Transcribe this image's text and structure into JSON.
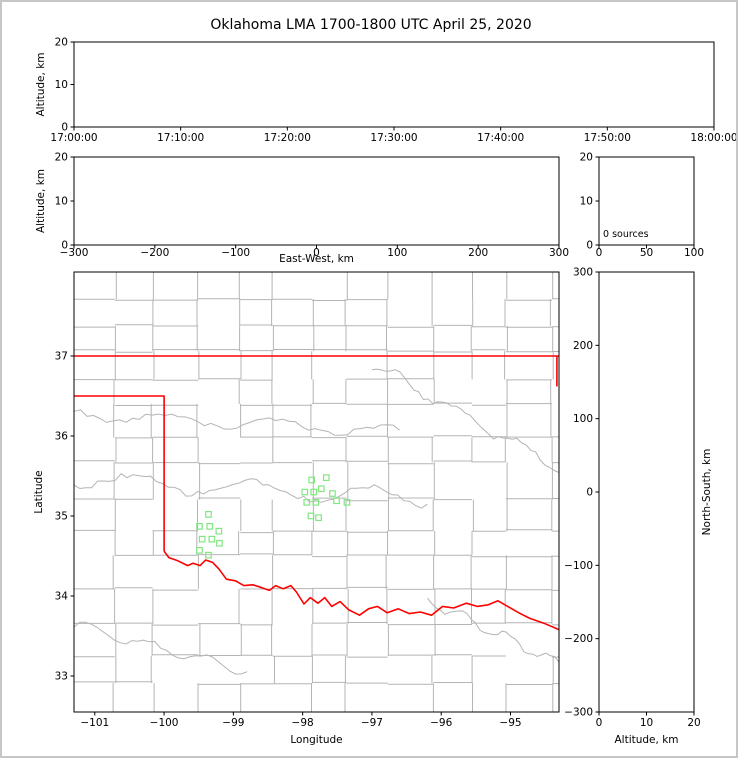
{
  "title": "Oklahoma LMA 1700-1800 UTC April 25, 2020",
  "colors": {
    "station": "#82e582",
    "state_border": "#ff0000",
    "county": "#b4b4b4",
    "river": "#b4b4b4",
    "frame": "#000000"
  },
  "chart_data": [
    {
      "id": "time_height",
      "type": "scatter",
      "xlabel": "",
      "ylabel": "Altitude, km",
      "xlim": [
        0,
        3600
      ],
      "ylim": [
        0,
        20
      ],
      "xticks": {
        "values": [
          0,
          600,
          1200,
          1800,
          2400,
          3000,
          3600
        ],
        "labels": [
          "17:00:00",
          "17:10:00",
          "17:20:00",
          "17:30:00",
          "17:40:00",
          "17:50:00",
          "18:00:00"
        ]
      },
      "yticks": {
        "values": [
          0,
          10,
          20
        ],
        "labels": [
          "0",
          "10",
          "20"
        ]
      },
      "points": []
    },
    {
      "id": "ew_altitude",
      "type": "scatter",
      "xlabel": "East-West, km",
      "ylabel": "Altitude, km",
      "xlim": [
        -300,
        300
      ],
      "ylim": [
        0,
        20
      ],
      "xticks": {
        "values": [
          -300,
          -200,
          -100,
          0,
          100,
          200,
          300
        ],
        "labels": [
          "−300",
          "−200",
          "−100",
          "0",
          "100",
          "200",
          "300"
        ]
      },
      "yticks": {
        "values": [
          0,
          10,
          20
        ],
        "labels": [
          "0",
          "10",
          "20"
        ]
      },
      "points": []
    },
    {
      "id": "altitude_histogram",
      "type": "line",
      "xlabel": "",
      "ylabel": "",
      "xlim": [
        0,
        100
      ],
      "ylim": [
        0,
        20
      ],
      "xticks": {
        "values": [
          0,
          50,
          100
        ],
        "labels": [
          "0",
          "50",
          "100"
        ]
      },
      "yticks": {
        "values": [
          0,
          10,
          20
        ],
        "labels": [
          "0",
          "10",
          "20"
        ]
      },
      "annotation": "0 sources",
      "points": []
    },
    {
      "id": "map",
      "type": "scatter",
      "xlabel": "Longitude",
      "ylabel": "Latitude",
      "xlim": [
        -101.3,
        -94.3
      ],
      "ylim": [
        32.55,
        38.05
      ],
      "xticks": {
        "values": [
          -101,
          -100,
          -99,
          -98,
          -97,
          -96,
          -95
        ],
        "labels": [
          "−101",
          "−100",
          "−99",
          "−98",
          "−97",
          "−96",
          "−95"
        ]
      },
      "yticks": {
        "values": [
          33,
          34,
          35,
          36,
          37
        ],
        "labels": [
          "33",
          "34",
          "35",
          "36",
          "37"
        ]
      },
      "stations": [
        [
          -99.36,
          35.02
        ],
        [
          -99.49,
          34.87
        ],
        [
          -99.34,
          34.87
        ],
        [
          -99.21,
          34.81
        ],
        [
          -99.45,
          34.71
        ],
        [
          -99.31,
          34.71
        ],
        [
          -99.2,
          34.66
        ],
        [
          -99.49,
          34.57
        ],
        [
          -99.36,
          34.51
        ],
        [
          -97.87,
          35.45
        ],
        [
          -97.66,
          35.48
        ],
        [
          -97.97,
          35.3
        ],
        [
          -97.84,
          35.3
        ],
        [
          -97.73,
          35.34
        ],
        [
          -97.57,
          35.28
        ],
        [
          -97.94,
          35.17
        ],
        [
          -97.81,
          35.17
        ],
        [
          -97.51,
          35.19
        ],
        [
          -97.36,
          35.17
        ],
        [
          -97.88,
          35.0
        ],
        [
          -97.77,
          34.98
        ]
      ],
      "state_border": [
        [
          [
            -101.3,
            37.0
          ],
          [
            -94.3,
            37.0
          ]
        ],
        [
          [
            -101.3,
            36.5
          ],
          [
            -100.0,
            36.5
          ],
          [
            -100.0,
            34.56
          ]
        ],
        [
          [
            -100.0,
            34.56
          ],
          [
            -99.93,
            34.48
          ],
          [
            -99.8,
            34.44
          ],
          [
            -99.66,
            34.38
          ],
          [
            -99.58,
            34.41
          ],
          [
            -99.48,
            34.38
          ],
          [
            -99.4,
            34.45
          ],
          [
            -99.3,
            34.42
          ],
          [
            -99.21,
            34.34
          ],
          [
            -99.1,
            34.21
          ],
          [
            -98.97,
            34.19
          ],
          [
            -98.85,
            34.13
          ],
          [
            -98.72,
            34.14
          ],
          [
            -98.61,
            34.11
          ],
          [
            -98.48,
            34.07
          ],
          [
            -98.39,
            34.13
          ],
          [
            -98.28,
            34.09
          ],
          [
            -98.17,
            34.13
          ],
          [
            -98.09,
            34.05
          ],
          [
            -97.98,
            33.9
          ],
          [
            -97.89,
            33.98
          ],
          [
            -97.78,
            33.91
          ],
          [
            -97.68,
            33.98
          ],
          [
            -97.58,
            33.87
          ],
          [
            -97.46,
            33.93
          ],
          [
            -97.34,
            33.83
          ],
          [
            -97.18,
            33.76
          ],
          [
            -97.05,
            33.84
          ],
          [
            -96.92,
            33.87
          ],
          [
            -96.78,
            33.79
          ],
          [
            -96.62,
            33.84
          ],
          [
            -96.46,
            33.78
          ],
          [
            -96.3,
            33.8
          ],
          [
            -96.14,
            33.76
          ],
          [
            -95.98,
            33.87
          ],
          [
            -95.82,
            33.85
          ],
          [
            -95.64,
            33.91
          ],
          [
            -95.48,
            33.87
          ],
          [
            -95.32,
            33.89
          ],
          [
            -95.18,
            33.94
          ],
          [
            -95.04,
            33.87
          ],
          [
            -94.88,
            33.79
          ],
          [
            -94.72,
            33.72
          ],
          [
            -94.52,
            33.66
          ],
          [
            -94.3,
            33.58
          ]
        ],
        [
          [
            -94.33,
            37.0
          ],
          [
            -94.33,
            36.62
          ]
        ]
      ]
    },
    {
      "id": "ns_altitude",
      "type": "scatter",
      "xlabel": "Altitude, km",
      "ylabel_right": "North-South, km",
      "xlim": [
        0,
        20
      ],
      "ylim": [
        -300,
        300
      ],
      "xticks": {
        "values": [
          0,
          10,
          20
        ],
        "labels": [
          "0",
          "10",
          "20"
        ]
      },
      "yticks": {
        "values": [
          -300,
          -200,
          -100,
          0,
          100,
          200,
          300
        ],
        "labels": [
          "−300",
          "−200",
          "−100",
          "0",
          "100",
          "200",
          "300"
        ]
      },
      "points": []
    }
  ]
}
